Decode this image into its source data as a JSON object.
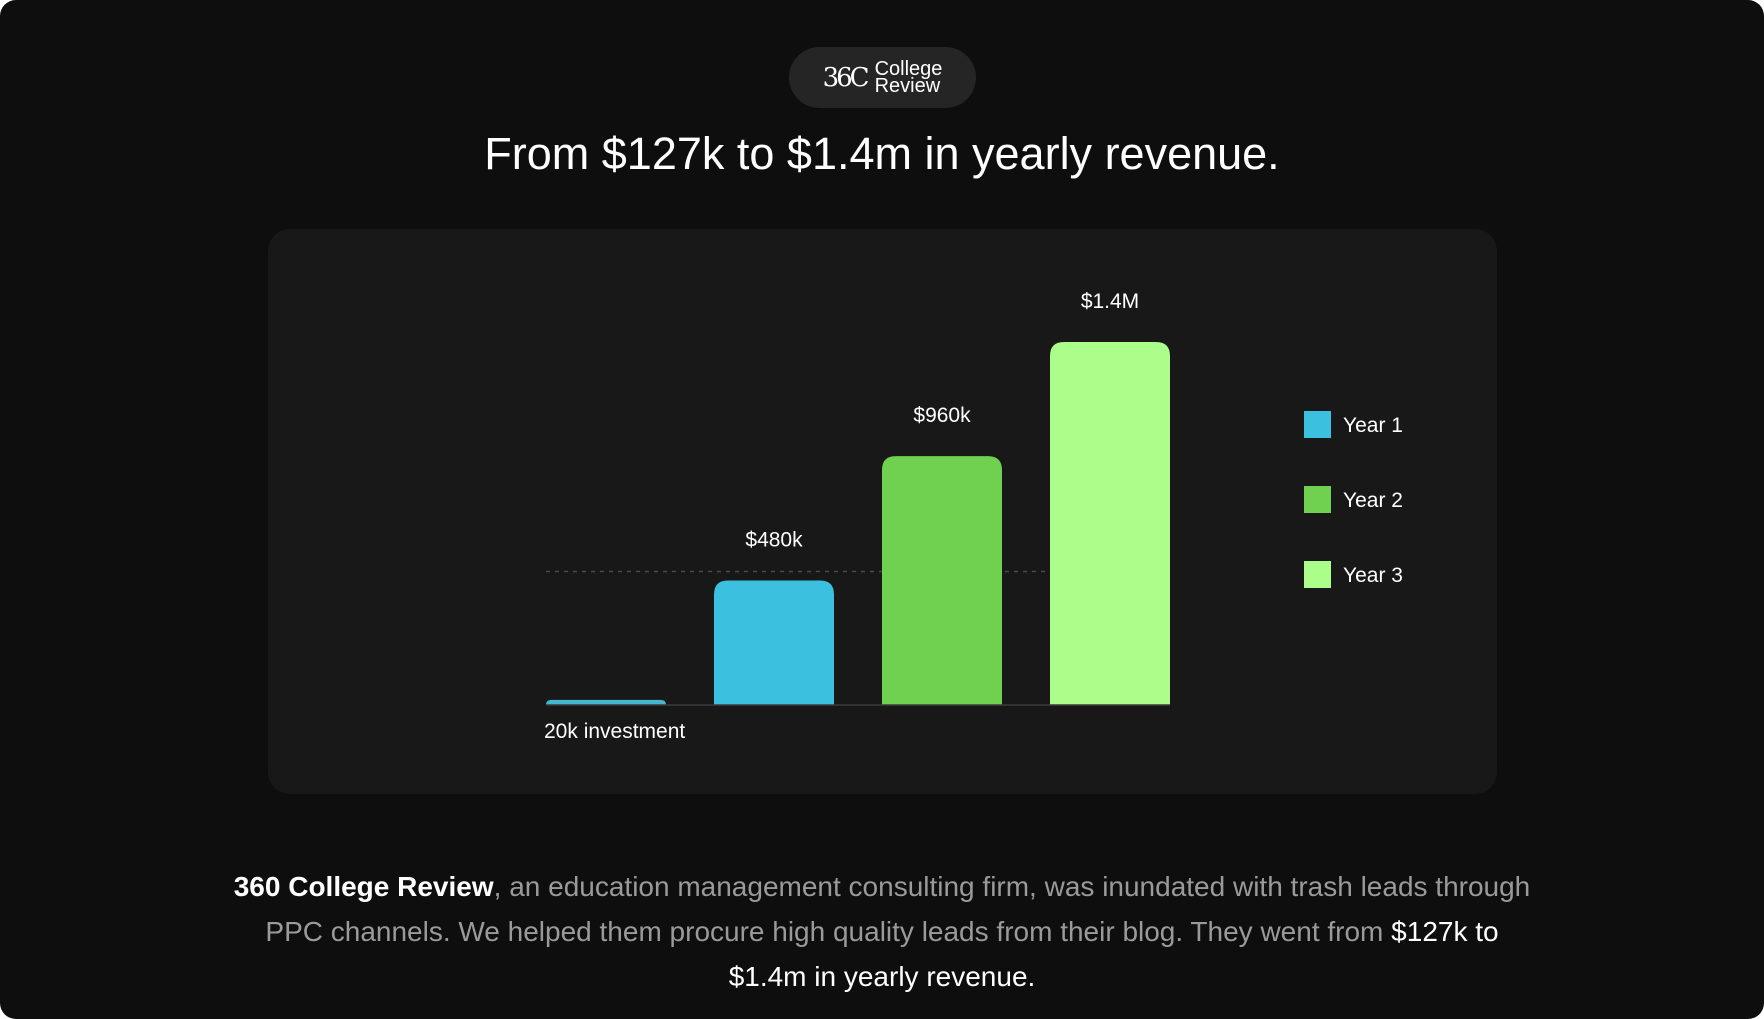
{
  "logo": {
    "mark": "36C",
    "line1": "College",
    "line2": "Review"
  },
  "headline": "From $127k to $1.4m in yearly revenue.",
  "chart_data": {
    "type": "bar",
    "title": "",
    "categories": [
      "20k investment",
      "Year 1",
      "Year 2",
      "Year 3"
    ],
    "values": [
      20,
      480,
      960,
      1400
    ],
    "value_labels": [
      "",
      "$480k",
      "$960k",
      "$1.4M"
    ],
    "colors": [
      "#45b6cf",
      "#3bc1df",
      "#6fd14f",
      "#abfe8a"
    ],
    "unit": "thousands USD",
    "investment_caption": "20k investment",
    "reference_line": {
      "value": 480,
      "style": "dashed"
    },
    "legend": {
      "position": "right",
      "items": [
        {
          "label": "Year 1",
          "color": "#3bc1df"
        },
        {
          "label": "Year 2",
          "color": "#6fd14f"
        },
        {
          "label": "Year 3",
          "color": "#abfe8a"
        }
      ]
    },
    "ylim": [
      0,
      1400
    ],
    "grid": false
  },
  "description": {
    "company": "360 College Review",
    "body": ", an education management consulting firm, was inundated with trash leads through PPC channels. We helped them procure high quality leads from their blog. They went from ",
    "highlight": "$127k to $1.4m in yearly revenue."
  }
}
